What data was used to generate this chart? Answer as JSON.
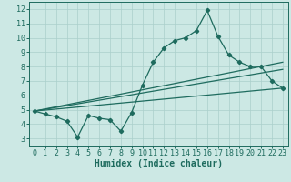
{
  "xlabel": "Humidex (Indice chaleur)",
  "bg_color": "#cce8e4",
  "line_color": "#1e6b5e",
  "grid_color": "#aacfcb",
  "xlim": [
    -0.5,
    23.5
  ],
  "ylim": [
    2.5,
    12.5
  ],
  "xticks": [
    0,
    1,
    2,
    3,
    4,
    5,
    6,
    7,
    8,
    9,
    10,
    11,
    12,
    13,
    14,
    15,
    16,
    17,
    18,
    19,
    20,
    21,
    22,
    23
  ],
  "yticks": [
    3,
    4,
    5,
    6,
    7,
    8,
    9,
    10,
    11,
    12
  ],
  "line1_x": [
    0,
    1,
    2,
    3,
    4,
    5,
    6,
    7,
    8,
    9,
    10,
    11,
    12,
    13,
    14,
    15,
    16,
    17,
    18,
    19,
    20,
    21,
    22,
    23
  ],
  "line1_y": [
    4.9,
    4.7,
    4.5,
    4.2,
    3.1,
    4.6,
    4.4,
    4.3,
    3.5,
    4.8,
    6.7,
    8.3,
    9.3,
    9.8,
    10.0,
    10.5,
    11.9,
    10.1,
    8.8,
    8.3,
    8.0,
    8.0,
    7.0,
    6.5
  ],
  "line2_x": [
    0,
    23
  ],
  "line2_y": [
    4.9,
    8.3
  ],
  "line3_x": [
    0,
    23
  ],
  "line3_y": [
    4.9,
    7.8
  ],
  "line4_x": [
    0,
    23
  ],
  "line4_y": [
    4.9,
    6.5
  ],
  "marker": "D",
  "markersize": 2.2,
  "linewidth": 0.9,
  "xlabel_fontsize": 7,
  "tick_fontsize": 6
}
